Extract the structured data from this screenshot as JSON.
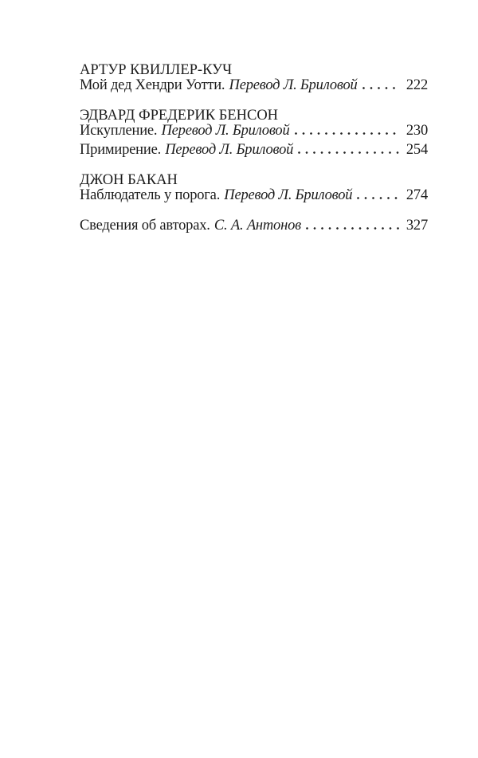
{
  "document": {
    "kind": "book-table-of-contents",
    "language": "ru"
  },
  "colors": {
    "text": "#1b1b1b",
    "background": "#ffffff"
  },
  "toc": {
    "sections": [
      {
        "author": "АРТУР КВИЛЛЕР-КУЧ",
        "entries": [
          {
            "title": "Мой дед Хендри Уотти.",
            "translator": "Перевод Л. Бриловой",
            "page": "222"
          }
        ]
      },
      {
        "author": "ЭДВАРД ФРЕДЕРИК БЕНСОН",
        "entries": [
          {
            "title": "Искупление.",
            "translator": "Перевод Л. Бриловой",
            "page": "230"
          },
          {
            "title": "Примирение.",
            "translator": "Перевод Л. Бриловой",
            "page": "254"
          }
        ]
      },
      {
        "author": "ДЖОН БАКАН",
        "entries": [
          {
            "title": "Наблюдатель у порога.",
            "translator": "Перевод Л. Бриловой",
            "page": "274"
          }
        ]
      }
    ],
    "footer": {
      "title": "Сведения об авторах.",
      "byline": "С. А. Антонов",
      "page": "327"
    }
  }
}
